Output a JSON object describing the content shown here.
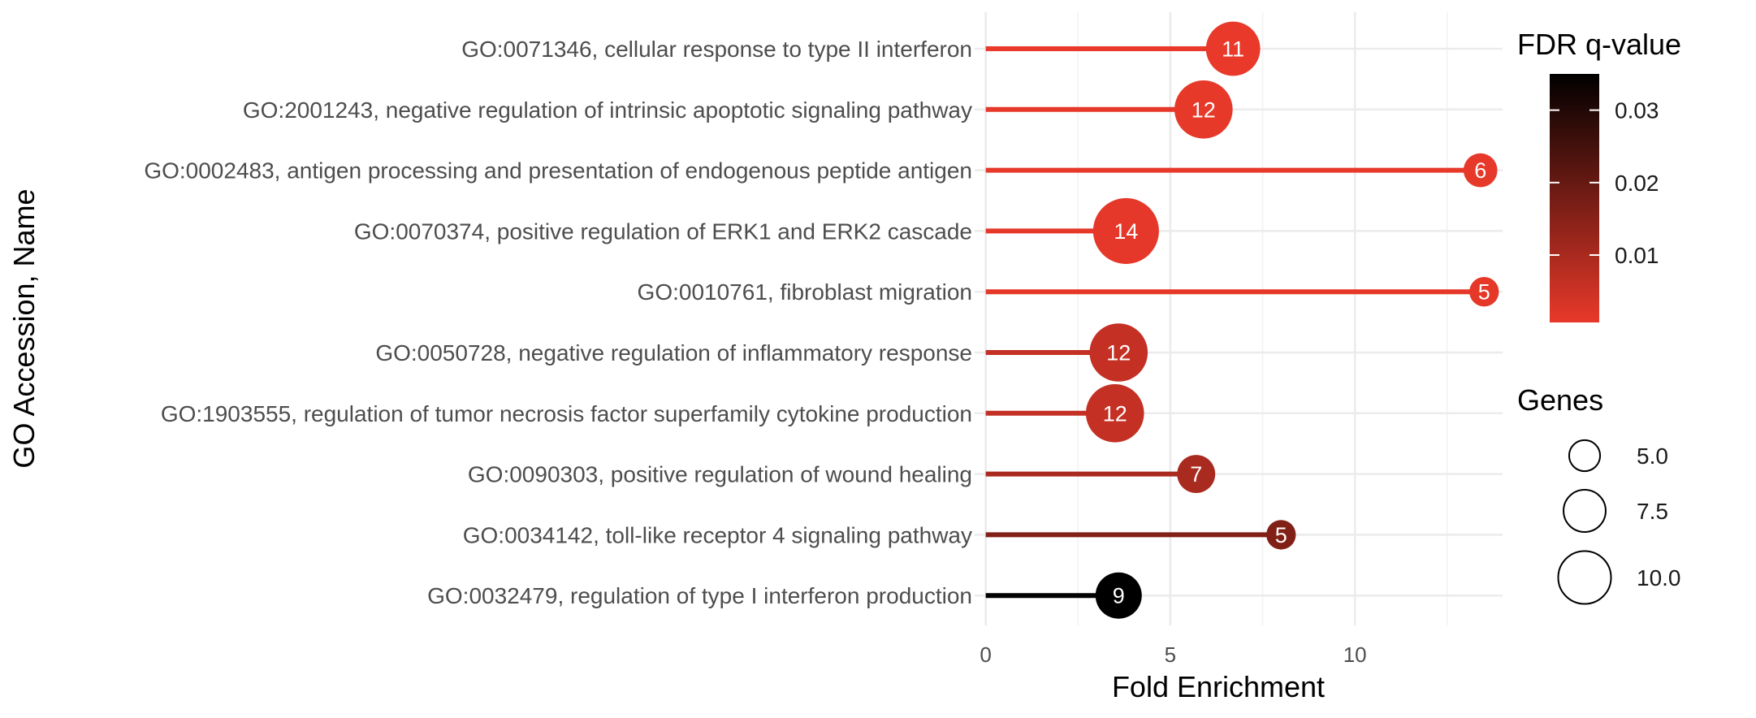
{
  "chart_data": {
    "type": "lollipop",
    "xlabel": "Fold Enrichment",
    "ylabel": "GO Accession, Name",
    "xlim": [
      -0.3,
      14.0
    ],
    "xticks": [
      0,
      5,
      10
    ],
    "grid": true,
    "categories": [
      "GO:0071346, cellular response to type II interferon",
      "GO:2001243, negative regulation of intrinsic apoptotic signaling pathway",
      "GO:0002483, antigen processing and presentation of endogenous peptide antigen",
      "GO:0070374, positive regulation of ERK1 and ERK2 cascade",
      "GO:0010761, fibroblast migration",
      "GO:0050728, negative regulation of inflammatory response",
      "GO:1903555, regulation of tumor necrosis factor superfamily cytokine production",
      "GO:0090303, positive regulation of wound healing",
      "GO:0034142, toll-like receptor 4 signaling pathway",
      "GO:0032479, regulation of type I interferon production"
    ],
    "fold_enrichment": [
      6.7,
      5.9,
      13.4,
      3.8,
      13.5,
      3.6,
      3.5,
      5.7,
      8.0,
      3.6
    ],
    "genes": [
      11,
      12,
      6,
      14,
      5,
      12,
      12,
      7,
      5,
      9
    ],
    "fdr_q_value": [
      0.0007,
      0.0009,
      0.001,
      0.0011,
      0.0012,
      0.006,
      0.006,
      0.01,
      0.016,
      0.035
    ],
    "legend_color": {
      "title": "FDR q-value",
      "ticks": [
        0.03,
        0.02,
        0.01
      ],
      "tick_labels": [
        "0.03",
        "0.02",
        "0.01"
      ],
      "range": [
        0.0007,
        0.035
      ],
      "low_color": "#e8392a",
      "high_color": "#000000"
    },
    "legend_size": {
      "title": "Genes",
      "values": [
        5.0,
        7.5,
        10.0
      ],
      "labels": [
        "5.0",
        "7.5",
        "10.0"
      ]
    },
    "legend_placement": "right"
  }
}
